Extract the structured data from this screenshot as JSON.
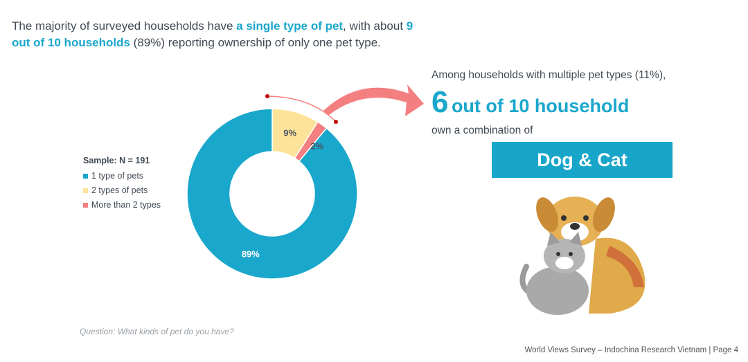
{
  "intro": {
    "p1": "The majority of surveyed households have ",
    "h1": "a single type of pet",
    "p2": ", with about ",
    "h2": "9 out of 10 households",
    "p3": " (89%) reporting ownership of only one pet type."
  },
  "chart_data": {
    "type": "pie",
    "variant": "donut",
    "title": "Sample: N = 191",
    "categories": [
      "2 types of pets",
      "More than 2 types",
      "1 type of pets"
    ],
    "values": [
      9,
      2,
      89
    ],
    "labels": [
      "9%",
      "2%",
      "89%"
    ],
    "colors": [
      "#fde39a",
      "#f47f80",
      "#1aa7cc"
    ],
    "legend": [
      "1 type of pets",
      "2 types of pets",
      "More than 2 types"
    ],
    "legend_colors": [
      "#1aa7cc",
      "#fde39a",
      "#f47f80"
    ],
    "legend_position": "left"
  },
  "callout": {
    "line1": "Among households with multiple pet types (11%),",
    "big_number": "6",
    "big_rest": "out of 10 household",
    "line2": "own a combination of",
    "box": "Dog & Cat"
  },
  "question": "Question: What kinds of pet do you have?",
  "footer": "World Views Survey – Indochina Research Vietnam | Page 4"
}
